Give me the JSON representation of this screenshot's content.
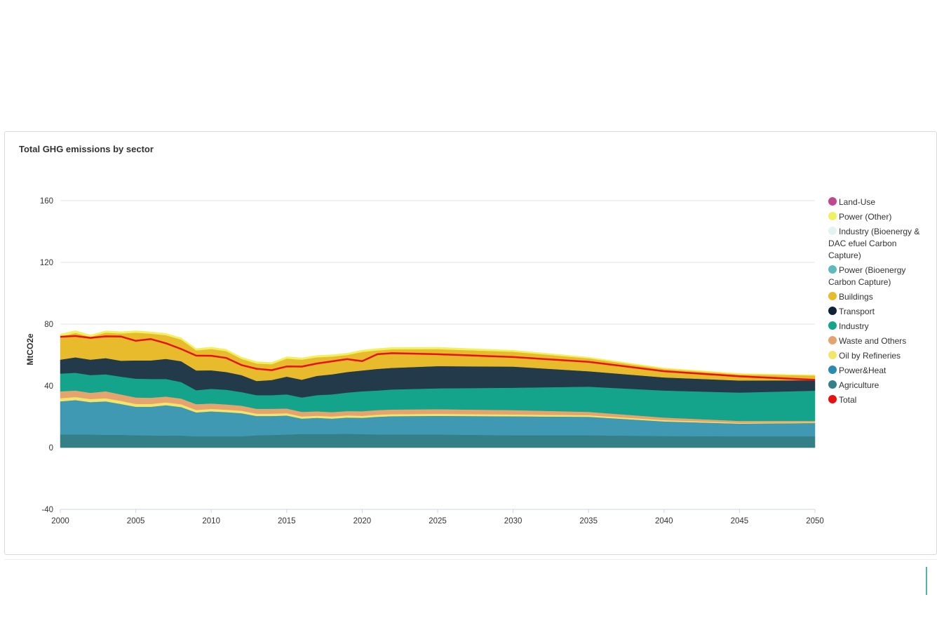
{
  "panel": {
    "title": "Total GHG emissions by sector"
  },
  "chart_data": {
    "type": "area",
    "title": "Total GHG emissions by sector",
    "xlabel": "",
    "ylabel": "MtCO2e",
    "xlim": [
      2000,
      2050
    ],
    "ylim": [
      -40,
      160
    ],
    "yticks": [
      -40,
      0,
      40,
      80,
      120,
      160
    ],
    "xticks": [
      2000,
      2005,
      2010,
      2015,
      2020,
      2025,
      2030,
      2035,
      2040,
      2045,
      2050
    ],
    "grid": true,
    "legend_position": "right",
    "x": [
      2000,
      2001,
      2002,
      2003,
      2004,
      2005,
      2006,
      2007,
      2008,
      2009,
      2010,
      2011,
      2012,
      2013,
      2014,
      2015,
      2016,
      2017,
      2018,
      2019,
      2020,
      2021,
      2022,
      2025,
      2030,
      2035,
      2040,
      2045,
      2050
    ],
    "series": [
      {
        "name": "Agriculture",
        "color": "#357f86",
        "values": [
          8.5,
          8.5,
          8.5,
          8.3,
          8.3,
          8.0,
          7.9,
          7.8,
          7.8,
          7.3,
          7.3,
          7.3,
          7.3,
          8.0,
          8.2,
          8.5,
          8.8,
          8.8,
          8.8,
          9.0,
          8.7,
          8.6,
          8.5,
          8.5,
          8.0,
          8.0,
          7.5,
          7.3,
          7.3
        ]
      },
      {
        "name": "Power&Heat",
        "color": "#3f99b2",
        "values": [
          21.5,
          22.3,
          21.0,
          21.7,
          20.0,
          18.5,
          18.6,
          19.7,
          18.5,
          15.5,
          16.2,
          15.7,
          15.0,
          12.5,
          12.3,
          12.3,
          10.0,
          10.5,
          10.0,
          10.5,
          10.6,
          11.4,
          11.9,
          12.1,
          12.3,
          12.0,
          9.5,
          8.3,
          8.7
        ]
      },
      {
        "name": "Oil by Refineries",
        "color": "#f3e46a",
        "values": [
          2.0,
          2.0,
          2.0,
          2.0,
          2.0,
          1.8,
          1.8,
          1.8,
          1.8,
          1.6,
          1.6,
          1.6,
          1.6,
          1.5,
          1.5,
          1.5,
          1.4,
          1.4,
          1.4,
          1.4,
          1.3,
          1.3,
          1.3,
          1.3,
          1.2,
          1.0,
          0.8,
          0.5,
          0.4
        ]
      },
      {
        "name": "Waste and Others",
        "color": "#e5a46e",
        "values": [
          4.5,
          4.2,
          4.0,
          4.5,
          4.2,
          4.2,
          4.0,
          3.8,
          3.7,
          3.8,
          3.5,
          3.4,
          3.3,
          3.2,
          3.2,
          3.0,
          3.0,
          2.8,
          2.8,
          2.8,
          3.0,
          3.0,
          3.0,
          3.0,
          2.8,
          2.2,
          1.7,
          1.2,
          1.0
        ]
      },
      {
        "name": "Industry",
        "color": "#14a38b",
        "values": [
          11.5,
          11.5,
          11.5,
          11.0,
          11.5,
          12.2,
          12.2,
          11.4,
          10.7,
          9.0,
          9.5,
          9.5,
          8.8,
          8.8,
          8.8,
          9.2,
          9.3,
          10.5,
          11.5,
          12.0,
          12.9,
          12.7,
          13.0,
          13.5,
          14.5,
          16.3,
          17.5,
          18.4,
          19.5
        ]
      },
      {
        "name": "Transport",
        "color": "#233a4a",
        "values": [
          9.0,
          10.0,
          10.0,
          10.5,
          10.3,
          11.8,
          12.0,
          13.0,
          13.5,
          12.8,
          12.0,
          11.5,
          11.0,
          9.2,
          9.8,
          11.5,
          11.5,
          12.5,
          13.0,
          13.3,
          13.5,
          14.0,
          14.0,
          14.4,
          13.7,
          10.0,
          8.5,
          7.8,
          6.8
        ]
      },
      {
        "name": "Buildings",
        "color": "#e8bb2d",
        "values": [
          15.0,
          15.8,
          14.8,
          16.5,
          17.6,
          18.0,
          17.3,
          15.3,
          14.0,
          13.0,
          13.8,
          13.5,
          10.5,
          11.3,
          10.2,
          11.7,
          13.0,
          12.0,
          11.5,
          11.0,
          12.0,
          12.0,
          12.0,
          11.0,
          9.6,
          8.3,
          5.5,
          4.0,
          3.0
        ]
      },
      {
        "name": "Power (Other)",
        "color": "#f1f05e",
        "values": [
          1.5,
          1.5,
          1.2,
          1.2,
          1.2,
          1.2,
          1.2,
          1.2,
          1.2,
          1.2,
          1.2,
          1.2,
          1.2,
          1.2,
          1.2,
          1.2,
          1.2,
          1.2,
          1.2,
          1.2,
          1.2,
          1.2,
          1.2,
          1.2,
          1.0,
          0.8,
          0.6,
          0.5,
          0.4
        ]
      }
    ],
    "hidden_series": [
      {
        "name": "Land-Use",
        "color": "#c0478f"
      },
      {
        "name": "Industry (Bioenergy & DAC efuel Carbon Capture)",
        "color": "#e3f3f3"
      },
      {
        "name": "Power (Bioenergy Carbon Capture)",
        "color": "#5fbac0"
      }
    ],
    "total": {
      "name": "Total",
      "color": "#e8110f",
      "values": [
        71.8,
        72.3,
        71.1,
        72.1,
        72.0,
        69.2,
        70.3,
        67.6,
        63.9,
        59.6,
        59.5,
        58.1,
        53.5,
        51.1,
        50.2,
        52.6,
        52.5,
        54.5,
        55.9,
        57.3,
        56.0,
        60.5,
        61.2,
        60.5,
        58.7,
        55.6,
        49.5,
        46.2,
        43.9
      ]
    }
  },
  "legend": {
    "items": [
      {
        "label": "Land-Use",
        "color": "#c0478f"
      },
      {
        "label": "Power (Other)",
        "color": "#f1f05e"
      },
      {
        "label": "Industry (Bioenergy & DAC efuel Carbon Capture)",
        "color": "#e3f3f3"
      },
      {
        "label": "Power (Bioenergy Carbon Capture)",
        "color": "#5fbac0"
      },
      {
        "label": "Buildings",
        "color": "#e8bb2d"
      },
      {
        "label": "Transport",
        "color": "#0e2238"
      },
      {
        "label": "Industry",
        "color": "#14a38b"
      },
      {
        "label": "Waste and Others",
        "color": "#e5a46e"
      },
      {
        "label": "Oil by Refineries",
        "color": "#f3e46a"
      },
      {
        "label": "Power&Heat",
        "color": "#2a8ab0"
      },
      {
        "label": "Agriculture",
        "color": "#357f86"
      },
      {
        "label": "Total",
        "color": "#e8110f"
      }
    ]
  }
}
